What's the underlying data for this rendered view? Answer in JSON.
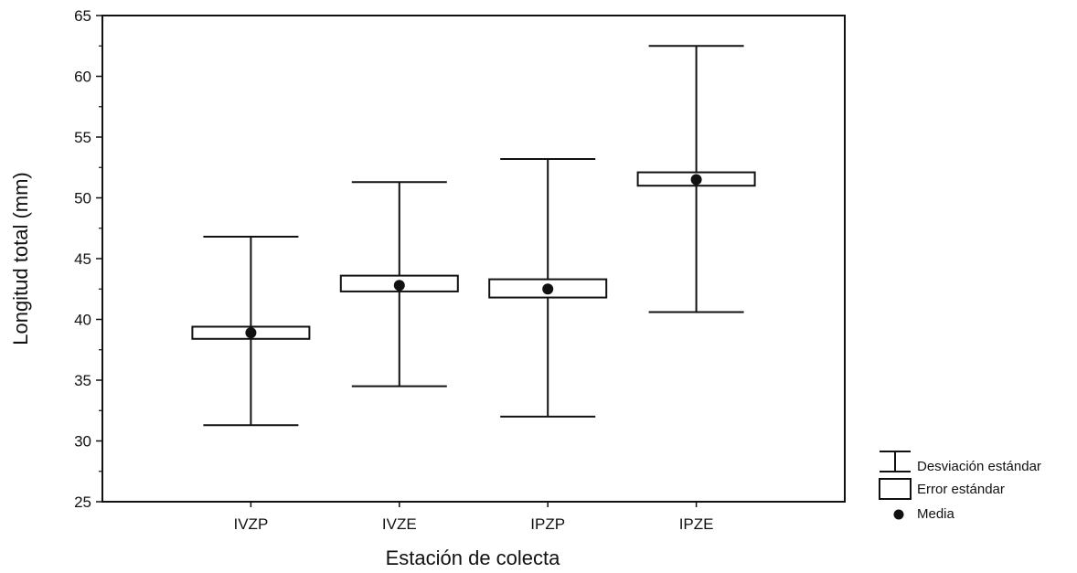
{
  "chart_data": {
    "type": "box",
    "xlabel": "Estación de colecta",
    "ylabel": "Longitud total (mm)",
    "categories": [
      "IVZP",
      "IVZE",
      "IPZP",
      "IPZE"
    ],
    "mean": [
      38.9,
      42.8,
      42.5,
      51.5
    ],
    "se_low": [
      38.4,
      42.3,
      41.8,
      51.0
    ],
    "se_high": [
      39.4,
      43.6,
      43.3,
      52.1
    ],
    "sd_low": [
      31.3,
      34.5,
      32.0,
      40.6
    ],
    "sd_high": [
      46.8,
      51.3,
      53.2,
      62.5
    ],
    "ylim": [
      25,
      65
    ],
    "yticks": [
      25,
      30,
      35,
      40,
      45,
      50,
      55,
      60,
      65
    ],
    "grid": false,
    "legend_position": "outside-right-bottom",
    "legend": {
      "sd": "Desviación estándar",
      "se": "Error estándar",
      "mean": "Media"
    }
  }
}
